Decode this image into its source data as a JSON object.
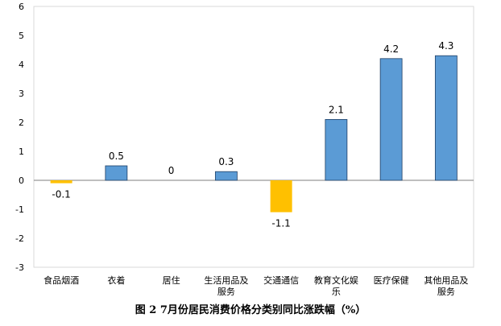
{
  "caption": "图 2   7月份居民消费价格分类别同比涨跌幅（%）",
  "chart_data": {
    "type": "bar",
    "categories": [
      [
        "食品烟酒"
      ],
      [
        "衣着"
      ],
      [
        "居住"
      ],
      [
        "生活用品及",
        "服务"
      ],
      [
        "交通通信"
      ],
      [
        "教育文化娱",
        "乐"
      ],
      [
        "医疗保健"
      ],
      [
        "其他用品及",
        "服务"
      ]
    ],
    "values": [
      -0.1,
      0.5,
      0,
      0.3,
      -1.1,
      2.1,
      4.2,
      4.3
    ],
    "data_labels": [
      "-0.1",
      "0.5",
      "0",
      "0.3",
      "-1.1",
      "2.1",
      "4.2",
      "4.3"
    ],
    "ylim": [
      -3,
      6
    ],
    "yticks": [
      6,
      5,
      4,
      3,
      2,
      1,
      0,
      -1,
      -2,
      -3
    ],
    "grid": false,
    "legend": "none",
    "colors": {
      "positive": "#5b9bd5",
      "negative": "#ffc000",
      "bar_stroke": "#1f3f66",
      "axis": "#7f7f7f"
    }
  }
}
